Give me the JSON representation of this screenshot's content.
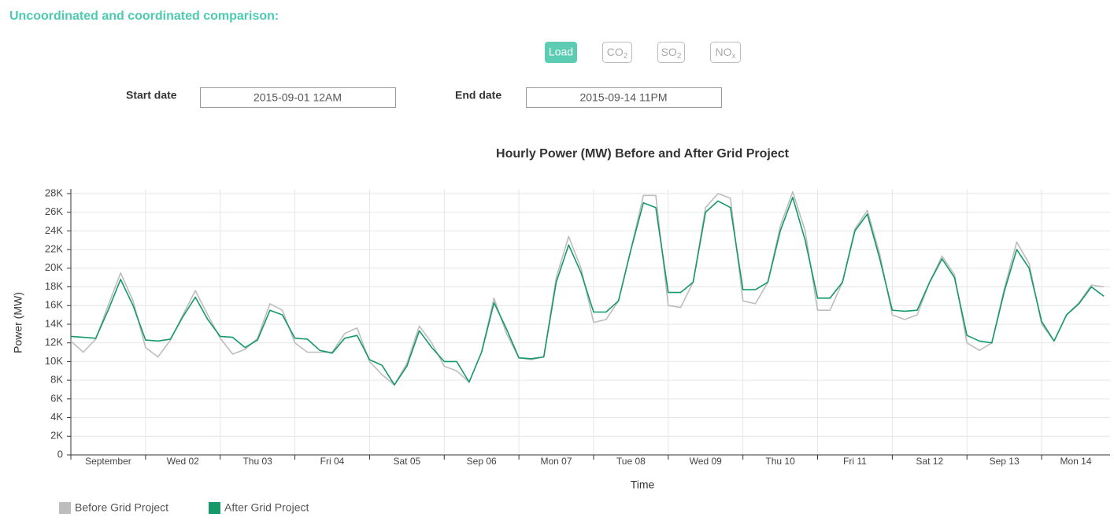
{
  "header": {
    "title": "Uncoordinated and coordinated comparison:"
  },
  "buttons": [
    {
      "label": "Load"
    },
    {
      "label": "CO",
      "sub": "2"
    },
    {
      "label": "SO",
      "sub": "2"
    },
    {
      "label": "NO",
      "sub": "x"
    }
  ],
  "dates": {
    "start_label": "Start date",
    "start_value": "2015-09-01 12AM",
    "end_label": "End date",
    "end_value": "2015-09-14 11PM"
  },
  "chart_data": {
    "type": "line",
    "title": "Hourly Power (MW) Before and After Grid Project",
    "xlabel": "Time",
    "ylabel": "Power (MW)",
    "x": [
      0,
      4,
      8,
      12,
      16,
      20,
      24,
      28,
      32,
      36,
      40,
      44,
      48,
      52,
      56,
      60,
      64,
      68,
      72,
      76,
      80,
      84,
      88,
      92,
      96,
      100,
      104,
      108,
      112,
      116,
      120,
      124,
      128,
      132,
      136,
      140,
      144,
      148,
      152,
      156,
      160,
      164,
      168,
      172,
      176,
      180,
      184,
      188,
      192,
      196,
      200,
      204,
      208,
      212,
      216,
      220,
      224,
      228,
      232,
      236,
      240,
      244,
      248,
      252,
      256,
      260,
      264,
      268,
      272,
      276,
      280,
      284,
      288,
      292,
      296,
      300,
      304,
      308,
      312,
      316,
      320,
      324,
      328,
      332
    ],
    "xlim": [
      0,
      334
    ],
    "xticks": [
      {
        "value": 0,
        "label": "September"
      },
      {
        "value": 24,
        "label": "Wed 02"
      },
      {
        "value": 48,
        "label": "Thu 03"
      },
      {
        "value": 72,
        "label": "Fri 04"
      },
      {
        "value": 96,
        "label": "Sat 05"
      },
      {
        "value": 120,
        "label": "Sep 06"
      },
      {
        "value": 144,
        "label": "Mon 07"
      },
      {
        "value": 168,
        "label": "Tue 08"
      },
      {
        "value": 192,
        "label": "Wed 09"
      },
      {
        "value": 216,
        "label": "Thu 10"
      },
      {
        "value": 240,
        "label": "Fri 11"
      },
      {
        "value": 264,
        "label": "Sat 12"
      },
      {
        "value": 288,
        "label": "Sep 13"
      },
      {
        "value": 312,
        "label": "Mon 14"
      }
    ],
    "ylim": [
      0,
      28500
    ],
    "yticks": [
      0,
      {
        "value": 2000,
        "label": "2K"
      },
      {
        "value": 4000,
        "label": "4K"
      },
      {
        "value": 6000,
        "label": "6K"
      },
      {
        "value": 8000,
        "label": "8K"
      },
      {
        "value": 10000,
        "label": "10K"
      },
      {
        "value": 12000,
        "label": "12K"
      },
      {
        "value": 14000,
        "label": "14K"
      },
      {
        "value": 16000,
        "label": "16K"
      },
      {
        "value": 18000,
        "label": "18K"
      },
      {
        "value": 20000,
        "label": "20K"
      },
      {
        "value": 22000,
        "label": "22K"
      },
      {
        "value": 24000,
        "label": "24K"
      },
      {
        "value": 26000,
        "label": "26K"
      },
      {
        "value": 28000,
        "label": "28K"
      }
    ],
    "grid": true,
    "legend": "bottom-left",
    "series": [
      {
        "name": "Before Grid Project",
        "color": "#bdbdbd",
        "values": [
          12200,
          11000,
          12400,
          16000,
          19500,
          16500,
          11500,
          10500,
          12300,
          15000,
          17600,
          15000,
          12500,
          10800,
          11300,
          12500,
          16200,
          15500,
          12000,
          11000,
          11000,
          11000,
          13000,
          13600,
          10000,
          8600,
          7500,
          9800,
          13800,
          12000,
          9500,
          9000,
          7800,
          11000,
          16800,
          13000,
          10400,
          10200,
          10500,
          19000,
          23400,
          20000,
          14200,
          14500,
          16500,
          22000,
          27800,
          27800,
          16000,
          15800,
          18500,
          26500,
          28000,
          27500,
          16500,
          16200,
          18500,
          24500,
          28200,
          24000,
          15500,
          15500,
          18500,
          24200,
          26200,
          21500,
          15000,
          14500,
          15000,
          18500,
          21300,
          19300,
          12000,
          11200,
          12000,
          17800,
          22800,
          20500,
          14000,
          12200,
          15000,
          16300,
          18200,
          18000
        ]
      },
      {
        "name": "After Grid Project",
        "color": "#15996b",
        "values": [
          12700,
          12600,
          12500,
          15500,
          18800,
          16000,
          12300,
          12200,
          12400,
          14800,
          16900,
          14500,
          12700,
          12600,
          11500,
          12300,
          15500,
          15000,
          12500,
          12400,
          11200,
          10900,
          12500,
          12800,
          10200,
          9600,
          7500,
          9500,
          13300,
          11500,
          10000,
          10000,
          7800,
          11000,
          16300,
          13500,
          10400,
          10300,
          10500,
          18500,
          22500,
          19500,
          15300,
          15300,
          16500,
          22000,
          27000,
          26500,
          17400,
          17400,
          18500,
          26000,
          27200,
          26500,
          17700,
          17700,
          18500,
          24000,
          27600,
          23000,
          16800,
          16800,
          18500,
          24000,
          25800,
          21000,
          15500,
          15400,
          15500,
          18500,
          21000,
          19000,
          12800,
          12200,
          12000,
          17500,
          22000,
          20000,
          14300,
          12200,
          15000,
          16200,
          18000,
          17000
        ]
      }
    ]
  }
}
